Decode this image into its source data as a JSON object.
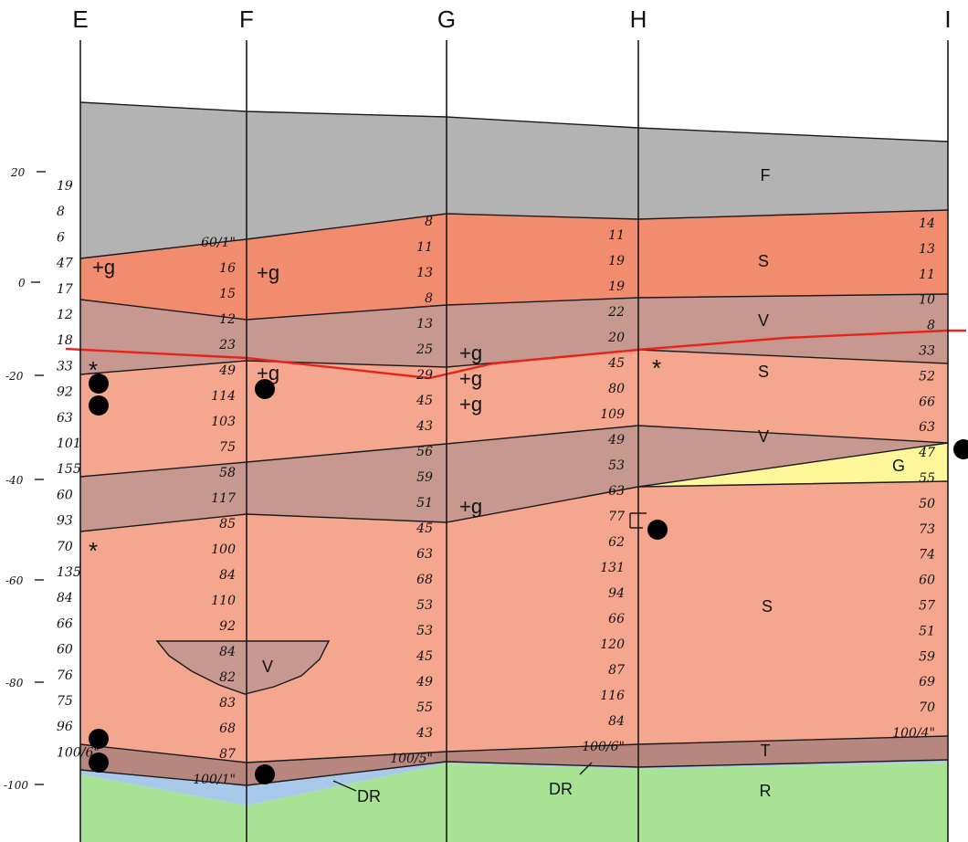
{
  "columns": [
    "E",
    "F",
    "G",
    "H",
    "I"
  ],
  "elevation_ticks": [
    "20",
    "0",
    "-20",
    "-40",
    "-60",
    "-80",
    "-100"
  ],
  "layers": {
    "fill": {
      "label": "F",
      "color": "#b3b3b3"
    },
    "sand_upper": {
      "label": "S",
      "color": "#f28c6e"
    },
    "silt_upper": {
      "label": "V",
      "color": "#c79890"
    },
    "sand_mid": {
      "label": "S",
      "color": "#f4a68e"
    },
    "silt_mid": {
      "label": "V",
      "color": "#c79890"
    },
    "gravel": {
      "label": "G",
      "color": "#fdf79a"
    },
    "sand_lower": {
      "label": "S",
      "color": "#f4a68e"
    },
    "silt_lens": {
      "label": "V",
      "color": "#c79890"
    },
    "till": {
      "label": "T",
      "color": "#b7877f"
    },
    "decomposed_rock": {
      "label": "DR",
      "color": "#a9c9eb"
    },
    "rock": {
      "label": "R",
      "color": "#a8e395"
    }
  },
  "water_table_color": "#e5241c",
  "blow_counts": {
    "E": [
      "19",
      "8",
      "6",
      "47",
      "17",
      "12",
      "18",
      "33",
      "92",
      "63",
      "101",
      "155",
      "60",
      "93",
      "70",
      "135",
      "84",
      "66",
      "60",
      "76",
      "75",
      "96",
      "100/6\""
    ],
    "F": [
      "60/1\"",
      "16",
      "15",
      "12",
      "23",
      "49",
      "114",
      "103",
      "75",
      "58",
      "117",
      "85",
      "100",
      "84",
      "110",
      "92",
      "84",
      "82",
      "83",
      "68",
      "87",
      "100/1\""
    ],
    "G": [
      "8",
      "11",
      "13",
      "8",
      "13",
      "25",
      "29",
      "45",
      "43",
      "56",
      "59",
      "51",
      "45",
      "63",
      "68",
      "53",
      "53",
      "45",
      "49",
      "55",
      "43",
      "100/5\""
    ],
    "H": [
      "11",
      "19",
      "19",
      "22",
      "20",
      "45",
      "80",
      "109",
      "49",
      "53",
      "63",
      "77",
      "62",
      "131",
      "94",
      "66",
      "120",
      "87",
      "116",
      "84",
      "100/6\""
    ],
    "I": [
      "14",
      "13",
      "11",
      "10",
      "8",
      "33",
      "52",
      "66",
      "63",
      "47",
      "55",
      "50",
      "73",
      "74",
      "60",
      "57",
      "51",
      "59",
      "69",
      "70",
      "100/4\""
    ]
  },
  "gravel_notes": [
    "+g",
    "+g",
    "+g",
    "+g",
    "+g",
    "+g",
    "+g"
  ],
  "asterisks": [
    "*",
    "*",
    "*"
  ]
}
